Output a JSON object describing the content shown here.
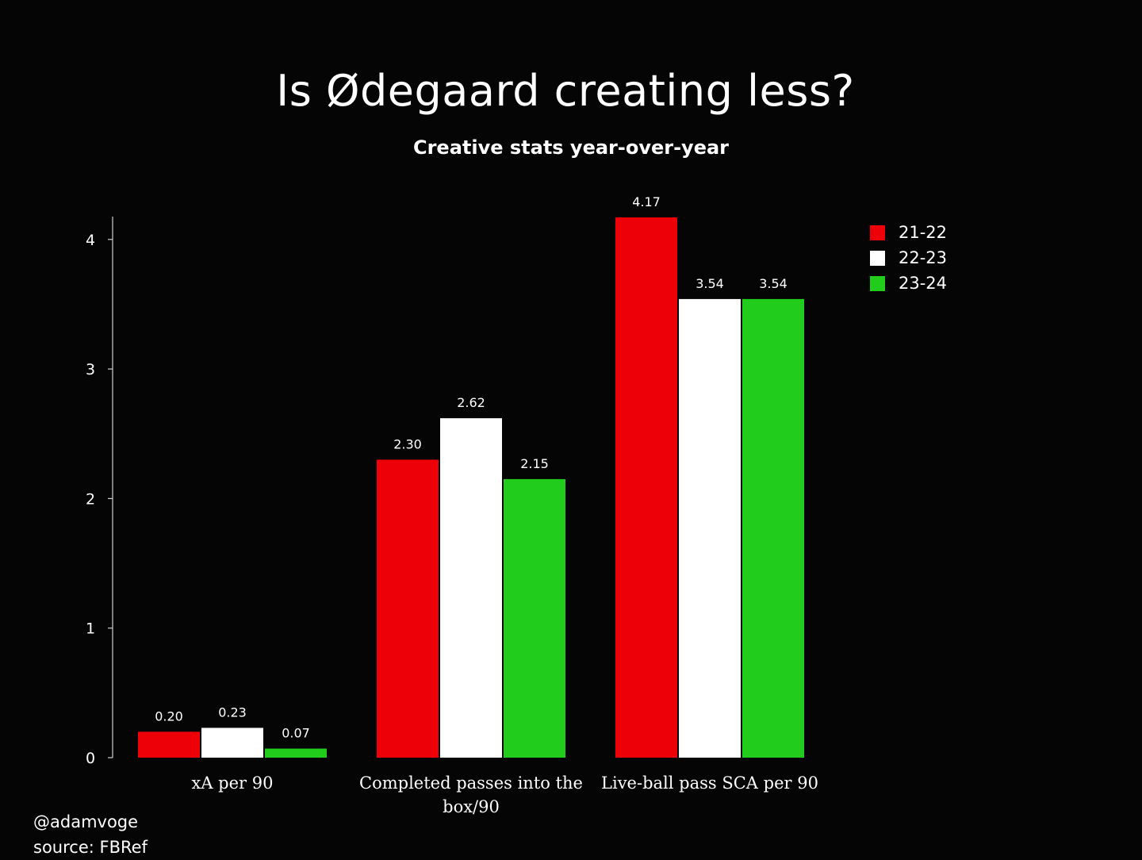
{
  "chart_data": {
    "type": "bar",
    "title": "Is Ødegaard creating less?",
    "subtitle": "Creative stats year-over-year",
    "categories": [
      "xA per 90",
      "Completed passes into the box/90",
      "Live-ball pass SCA per 90"
    ],
    "category_lines": [
      [
        "xA per 90"
      ],
      [
        "Completed passes into the",
        "box/90"
      ],
      [
        "Live-ball pass SCA per 90"
      ]
    ],
    "series": [
      {
        "name": "21-22",
        "color": "#ee0009",
        "values": [
          0.2,
          2.3,
          4.17
        ],
        "labels": [
          "0.20",
          "2.30",
          "4.17"
        ]
      },
      {
        "name": "22-23",
        "color": "#ffffff",
        "values": [
          0.23,
          2.62,
          3.54
        ],
        "labels": [
          "0.23",
          "2.62",
          "3.54"
        ]
      },
      {
        "name": "23-24",
        "color": "#22cc1c",
        "values": [
          0.07,
          2.15,
          3.54
        ],
        "labels": [
          "0.07",
          "2.15",
          "3.54"
        ]
      }
    ],
    "y_ticks": [
      0,
      1,
      2,
      3,
      4
    ],
    "ylim": [
      0,
      4.2
    ],
    "xlabel": "",
    "ylabel": "",
    "grid": false,
    "legend_position": "top-right"
  },
  "footer": {
    "credit": "@adamvoge",
    "source": "source: FBRef"
  }
}
